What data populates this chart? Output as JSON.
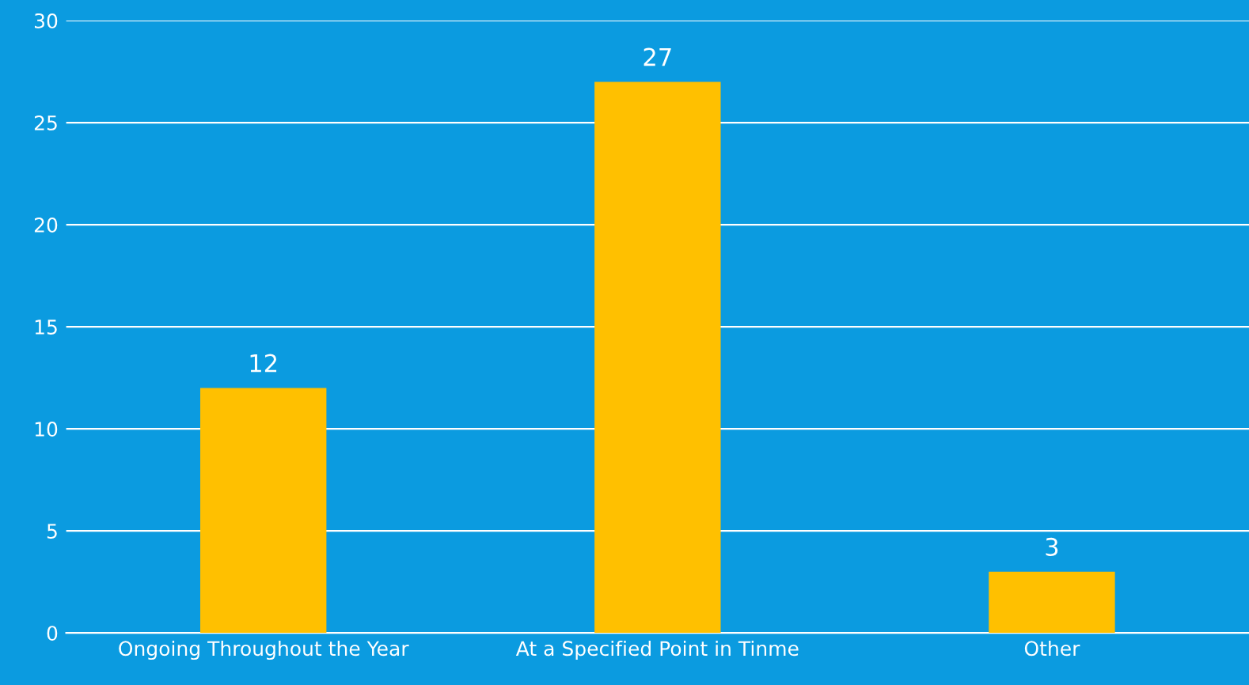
{
  "chart_data": {
    "type": "bar",
    "categories": [
      "Ongoing Throughout the Year",
      "At a Specified Point in Tinme",
      "Other"
    ],
    "values": [
      12,
      27,
      3
    ],
    "color": "#ffc000",
    "ylim": [
      0,
      30
    ],
    "yticks": [
      0,
      5,
      10,
      15,
      20,
      25,
      30
    ],
    "grid": "y",
    "data_labels": true
  }
}
